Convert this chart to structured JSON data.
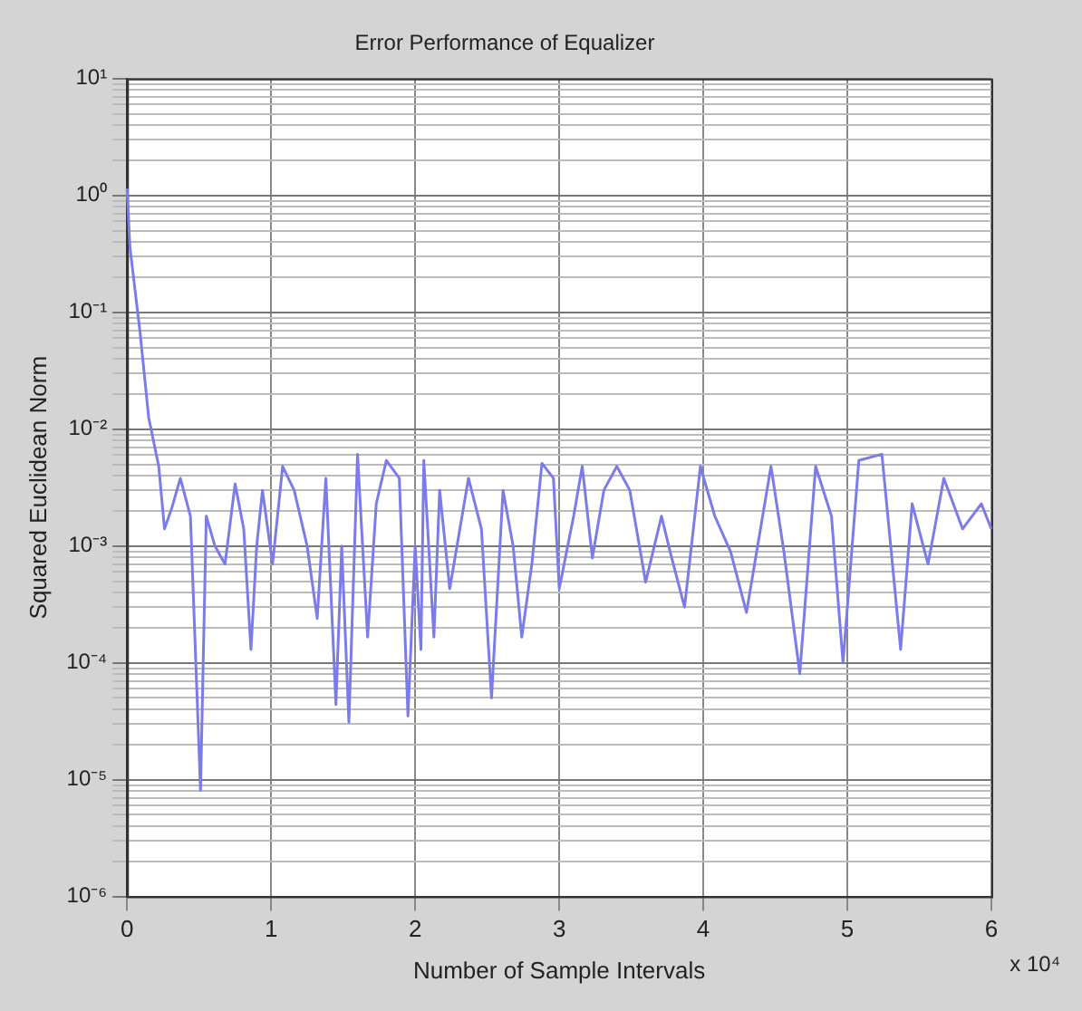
{
  "chart_data": {
    "type": "line",
    "title": "Error Performance of Equalizer",
    "xlabel": "Number of Sample Intervals",
    "ylabel": "Squared Euclidean Norm",
    "annotations": [
      "x 10⁴"
    ],
    "log": "y",
    "grid": true,
    "legend": false,
    "marker": "none",
    "line_style": "solid",
    "xlim": [
      0,
      6
    ],
    "xticks": [
      0,
      1,
      2,
      3,
      4,
      5,
      6
    ],
    "ylim": [
      1e-06,
      10
    ],
    "yticks": [
      {
        "value": 1e-06,
        "label": "10⁻⁶"
      },
      {
        "value": 2e-06,
        "label": null
      },
      {
        "value": 3e-06,
        "label": null
      },
      {
        "value": 4e-06,
        "label": null
      },
      {
        "value": 5e-06,
        "label": null
      },
      {
        "value": 6e-06,
        "label": null
      },
      {
        "value": 7e-06,
        "label": null
      },
      {
        "value": 8e-06,
        "label": null
      },
      {
        "value": 9e-06,
        "label": null
      },
      {
        "value": 1e-05,
        "label": "10⁻⁵"
      },
      {
        "value": 2e-05,
        "label": null
      },
      {
        "value": 3e-05,
        "label": null
      },
      {
        "value": 4e-05,
        "label": null
      },
      {
        "value": 5e-05,
        "label": null
      },
      {
        "value": 6e-05,
        "label": null
      },
      {
        "value": 7e-05,
        "label": null
      },
      {
        "value": 8e-05,
        "label": null
      },
      {
        "value": 9e-05,
        "label": null
      },
      {
        "value": 0.0001,
        "label": "10⁻⁴"
      },
      {
        "value": 0.0002,
        "label": null
      },
      {
        "value": 0.0003,
        "label": null
      },
      {
        "value": 0.0004,
        "label": null
      },
      {
        "value": 0.0005,
        "label": null
      },
      {
        "value": 0.0006,
        "label": null
      },
      {
        "value": 0.0007,
        "label": null
      },
      {
        "value": 0.0008,
        "label": null
      },
      {
        "value": 0.0009,
        "label": null
      },
      {
        "value": 0.001,
        "label": "10⁻³"
      },
      {
        "value": 0.002,
        "label": null
      },
      {
        "value": 0.003,
        "label": null
      },
      {
        "value": 0.004,
        "label": null
      },
      {
        "value": 0.005,
        "label": null
      },
      {
        "value": 0.006,
        "label": null
      },
      {
        "value": 0.007,
        "label": null
      },
      {
        "value": 0.008,
        "label": null
      },
      {
        "value": 0.009,
        "label": null
      },
      {
        "value": 0.01,
        "label": "10⁻²"
      },
      {
        "value": 0.02,
        "label": null
      },
      {
        "value": 0.03,
        "label": null
      },
      {
        "value": 0.04,
        "label": null
      },
      {
        "value": 0.05,
        "label": null
      },
      {
        "value": 0.06,
        "label": null
      },
      {
        "value": 0.07,
        "label": null
      },
      {
        "value": 0.08,
        "label": null
      },
      {
        "value": 0.09,
        "label": null
      },
      {
        "value": 0.1,
        "label": "10⁻¹"
      },
      {
        "value": 0.2,
        "label": null
      },
      {
        "value": 0.3,
        "label": null
      },
      {
        "value": 0.4,
        "label": null
      },
      {
        "value": 0.5,
        "label": null
      },
      {
        "value": 0.6,
        "label": null
      },
      {
        "value": 0.7,
        "label": null
      },
      {
        "value": 0.8,
        "label": null
      },
      {
        "value": 0.9,
        "label": null
      },
      {
        "value": 1,
        "label": "10⁰"
      },
      {
        "value": 2,
        "label": null
      },
      {
        "value": 3,
        "label": null
      },
      {
        "value": 4,
        "label": null
      },
      {
        "value": 5,
        "label": null
      },
      {
        "value": 6,
        "label": null
      },
      {
        "value": 7,
        "label": null
      },
      {
        "value": 8,
        "label": null
      },
      {
        "value": 9,
        "label": null
      },
      {
        "value": 10,
        "label": "10¹"
      }
    ],
    "series": [
      {
        "color": "#7b7bea",
        "x": [
          0,
          0.02,
          0.09,
          0.15,
          0.22,
          0.26,
          0.31,
          0.37,
          0.44,
          0.51,
          0.55,
          0.61,
          0.68,
          0.75,
          0.81,
          0.86,
          0.9,
          0.94,
          1.01,
          1.08,
          1.16,
          1.25,
          1.32,
          1.38,
          1.45,
          1.49,
          1.54,
          1.6,
          1.67,
          1.73,
          1.8,
          1.89,
          1.95,
          2,
          2.04,
          2.06,
          2.13,
          2.17,
          2.24,
          2.37,
          2.46,
          2.53,
          2.61,
          2.68,
          2.74,
          2.81,
          2.88,
          2.96,
          3,
          3.1,
          3.16,
          3.23,
          3.31,
          3.4,
          3.49,
          3.6,
          3.71,
          3.77,
          3.87,
          3.98,
          4.08,
          4.19,
          4.3,
          4.47,
          4.56,
          4.67,
          4.78,
          4.89,
          4.97,
          5.08,
          5.24,
          5.37,
          5.45,
          5.56,
          5.67,
          5.8,
          5.93,
          6
        ],
        "values": [
          1.15,
          0.36,
          0.068,
          0.0126,
          0.0048,
          0.0014,
          0.0021,
          0.0038,
          0.0018,
          8.1e-06,
          0.0018,
          0.001,
          0.0007,
          0.0034,
          0.0014,
          0.00013,
          0.001,
          0.003,
          0.0007,
          0.0048,
          0.003,
          0.001,
          0.00024,
          0.0038,
          4.4e-05,
          0.001,
          3.1e-05,
          0.0061,
          0.000166,
          0.0023,
          0.0054,
          0.0038,
          3.5e-05,
          0.001,
          0.00013,
          0.0054,
          0.000166,
          0.003,
          0.00043,
          0.0038,
          0.0014,
          5e-05,
          0.003,
          0.001,
          0.000166,
          0.0007,
          0.0051,
          0.0038,
          0.00043,
          0.0018,
          0.0048,
          0.00079,
          0.003,
          0.0048,
          0.003,
          0.00049,
          0.0018,
          0.00089,
          0.0003,
          0.0048,
          0.0018,
          0.00089,
          0.00027,
          0.0048,
          0.00089,
          8.1e-05,
          0.0048,
          0.0018,
          0.0001,
          0.0054,
          0.0061,
          0.00013,
          0.0023,
          0.0007,
          0.0038,
          0.0014,
          0.0023,
          0.0014
        ]
      }
    ]
  }
}
